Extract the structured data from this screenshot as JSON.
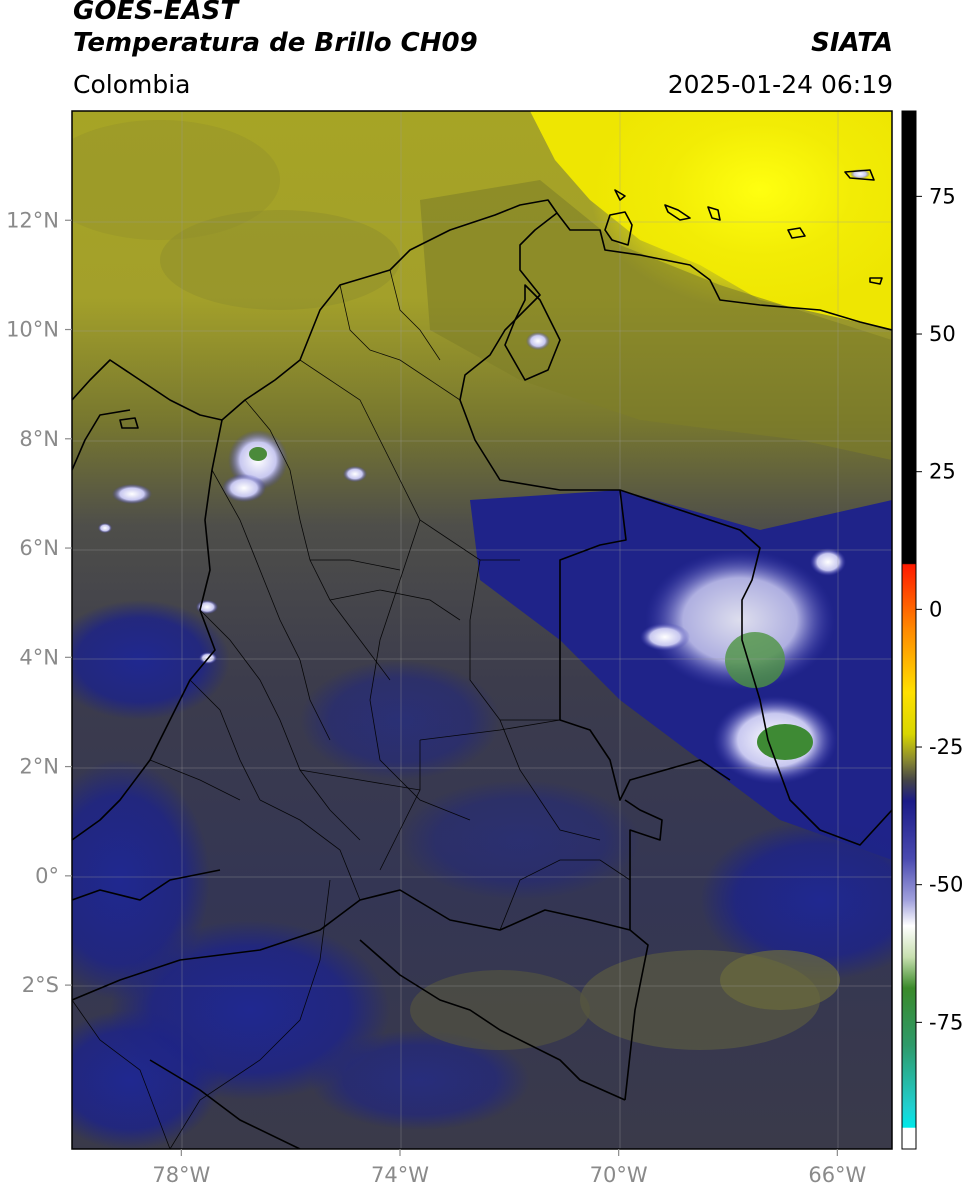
{
  "header": {
    "title_line1": "GOES-EAST",
    "title_line2": "Temperatura de Brillo CH09",
    "brand": "SIATA",
    "region": "Colombia",
    "timestamp": "2025-01-24 06:19"
  },
  "map": {
    "lon_ticks": [
      {
        "value": -78,
        "label": "78°W"
      },
      {
        "value": -74,
        "label": "74°W"
      },
      {
        "value": -70,
        "label": "70°W"
      },
      {
        "value": -66,
        "label": "66°W"
      }
    ],
    "lat_ticks": [
      {
        "value": 12,
        "label": "12°N"
      },
      {
        "value": 10,
        "label": "10°N"
      },
      {
        "value": 8,
        "label": "8°N"
      },
      {
        "value": 6,
        "label": "6°N"
      },
      {
        "value": 4,
        "label": "4°N"
      },
      {
        "value": 2,
        "label": "2°N"
      },
      {
        "value": 0,
        "label": "0°"
      },
      {
        "value": -2,
        "label": "2°S"
      }
    ],
    "colors": {
      "dry_warm": "#e8e000",
      "olive": "#8c8c2a",
      "gray_mid": "#5a5a4a",
      "deep_blue": "#1a2080",
      "cold_white": "#ffffff",
      "very_cold_green": "#3a8a3a"
    }
  },
  "colorbar": {
    "ticks": [
      {
        "value": 75,
        "label": "75"
      },
      {
        "value": 50,
        "label": "50"
      },
      {
        "value": 25,
        "label": "25"
      },
      {
        "value": 0,
        "label": "0"
      },
      {
        "value": -25,
        "label": "-25"
      },
      {
        "value": -50,
        "label": "-50"
      },
      {
        "value": -75,
        "label": "-75"
      }
    ]
  }
}
